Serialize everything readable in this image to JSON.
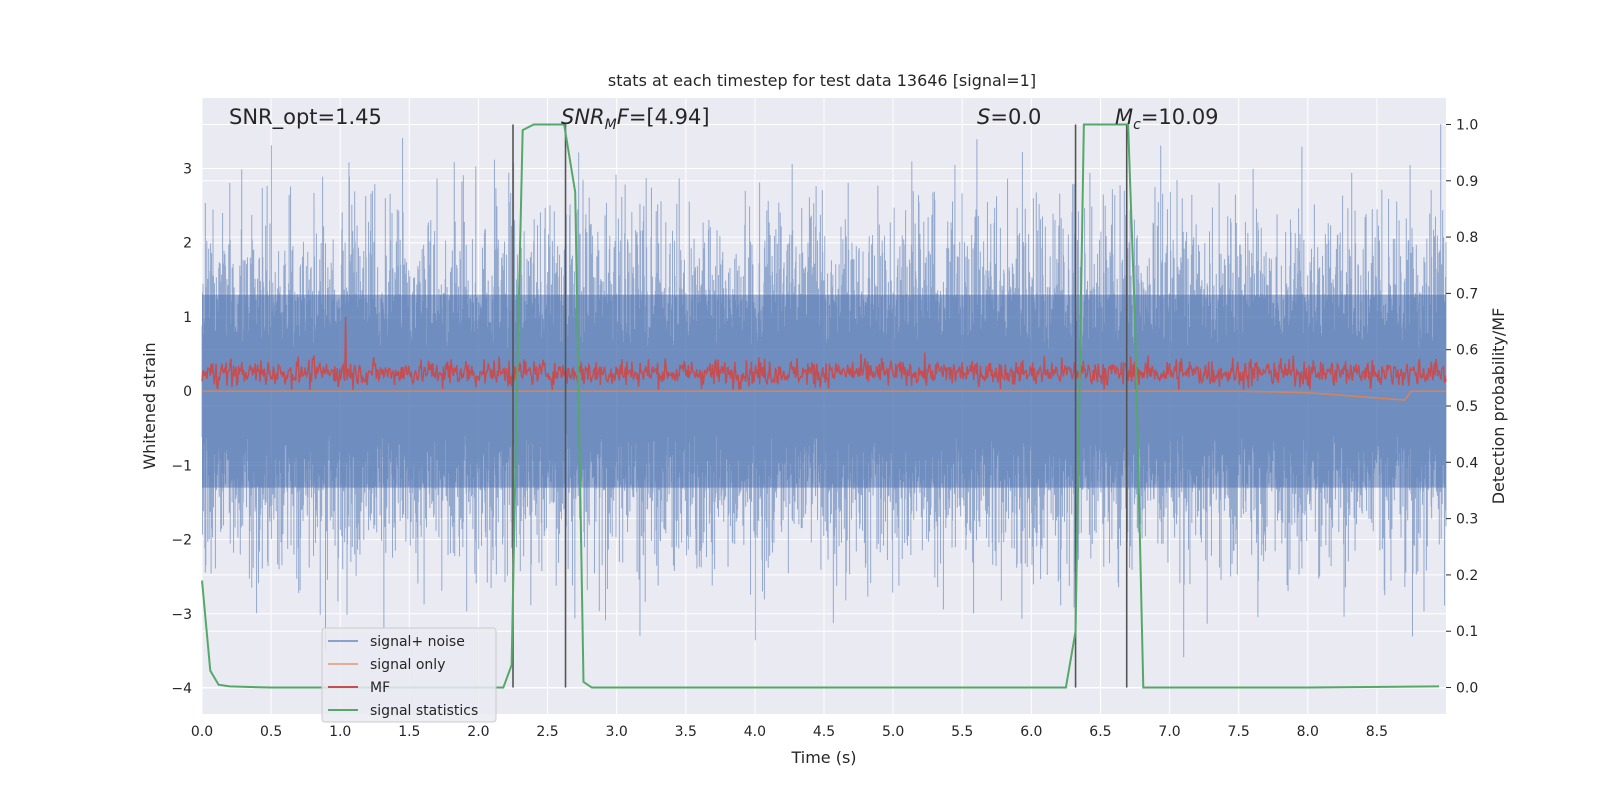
{
  "chart_data": {
    "type": "line",
    "title": "stats at each timestep for test data 13646 [signal=1]",
    "xlabel": "Time (s)",
    "ylabel_left": "Whitened strain",
    "ylabel_right": "Detection probability/MF",
    "xlim": [
      0.0,
      9.0
    ],
    "ylim_left": [
      -4.35,
      3.95
    ],
    "ylim_right": [
      -0.047,
      1.047
    ],
    "xticks": [
      "0.0",
      "0.5",
      "1.0",
      "1.5",
      "2.0",
      "2.5",
      "3.0",
      "3.5",
      "4.0",
      "4.5",
      "5.0",
      "5.5",
      "6.0",
      "6.5",
      "7.0",
      "7.5",
      "8.0",
      "8.5"
    ],
    "xtick_values": [
      0.0,
      0.5,
      1.0,
      1.5,
      2.0,
      2.5,
      3.0,
      3.5,
      4.0,
      4.5,
      5.0,
      5.5,
      6.0,
      6.5,
      7.0,
      7.5,
      8.0,
      8.5
    ],
    "yticks_left": [
      "−4",
      "−3",
      "−2",
      "−1",
      "0",
      "1",
      "2",
      "3"
    ],
    "ytick_values_left": [
      -4,
      -3,
      -2,
      -1,
      0,
      1,
      2,
      3
    ],
    "yticks_right": [
      "0.0",
      "0.1",
      "0.2",
      "0.3",
      "0.4",
      "0.5",
      "0.6",
      "0.7",
      "0.8",
      "0.9",
      "1.0"
    ],
    "ytick_values_right": [
      0.0,
      0.1,
      0.2,
      0.3,
      0.4,
      0.5,
      0.6,
      0.7,
      0.8,
      0.9,
      1.0
    ],
    "grid": true,
    "legend_position": "lower-left",
    "colors": {
      "plot_background": "#eaeaf2",
      "signal_noise": "#4c72b0",
      "signal_only": "#dd8452",
      "mf": "#c44e52",
      "signal_statistics": "#55a868",
      "vline": "#555555"
    },
    "annotations": [
      {
        "name": "snr-opt",
        "text": "SNR_opt=1.45"
      },
      {
        "name": "snr-mf",
        "text": "SNR_MF=[4.94]"
      },
      {
        "name": "s-value",
        "text": "S=0.0"
      },
      {
        "name": "mc-value",
        "text": "M_c=10.09"
      }
    ],
    "series": [
      {
        "name": "signal+ noise",
        "style": "dense-noise",
        "amplitude_range": [
          -4.0,
          3.6
        ],
        "envelope_typical": [
          -2.0,
          2.0
        ]
      },
      {
        "name": "signal only",
        "style": "flat",
        "values_x": [
          0.0,
          7.5,
          8.0,
          8.7,
          8.75,
          9.0
        ],
        "values_y": [
          0.0,
          0.0,
          -0.02,
          -0.12,
          0.0,
          0.0
        ]
      },
      {
        "name": "MF",
        "style": "dense-noise",
        "amplitude_range": [
          0.0,
          1.0
        ],
        "envelope_typical": [
          0.05,
          0.5
        ]
      },
      {
        "name": "signal statistics",
        "style": "line",
        "axis": "right",
        "x": [
          0.0,
          0.06,
          0.12,
          0.2,
          0.5,
          1.0,
          2.0,
          2.18,
          2.24,
          2.28,
          2.32,
          2.4,
          2.62,
          2.7,
          2.76,
          2.82,
          3.2,
          4.0,
          5.0,
          6.0,
          6.25,
          6.32,
          6.38,
          6.7,
          6.75,
          6.81,
          6.9,
          8.0,
          8.95
        ],
        "y": [
          0.19,
          0.03,
          0.005,
          0.002,
          0.0,
          0.0,
          0.0,
          0.0,
          0.04,
          0.55,
          0.99,
          1.0,
          1.0,
          0.88,
          0.01,
          0.0,
          0.0,
          0.0,
          0.0,
          0.0,
          0.0,
          0.1,
          1.0,
          1.0,
          0.65,
          0.0,
          0.0,
          0.0,
          0.002
        ]
      }
    ],
    "vertical_lines_x": [
      2.25,
      2.63,
      6.32,
      6.69
    ],
    "vertical_lines_top": 1.0
  }
}
